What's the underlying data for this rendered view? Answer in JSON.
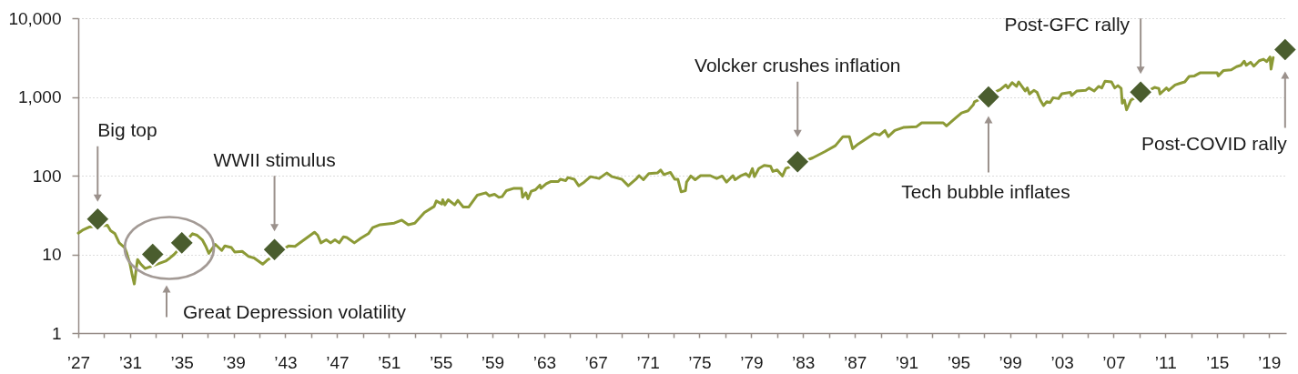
{
  "chart_data": {
    "type": "line",
    "log": true,
    "grid": "y",
    "xlim": [
      "1927-01",
      "2020-05"
    ],
    "ylim": [
      1,
      10000
    ],
    "xticks": [
      {
        "value": "1927",
        "label": "’27"
      },
      {
        "value": "1929",
        "label": null
      },
      {
        "value": "1931",
        "label": "’31"
      },
      {
        "value": "1933",
        "label": null
      },
      {
        "value": "1935",
        "label": "’35"
      },
      {
        "value": "1937",
        "label": null
      },
      {
        "value": "1939",
        "label": "’39"
      },
      {
        "value": "1941",
        "label": null
      },
      {
        "value": "1943",
        "label": "’43"
      },
      {
        "value": "1945",
        "label": null
      },
      {
        "value": "1947",
        "label": "’47"
      },
      {
        "value": "1949",
        "label": null
      },
      {
        "value": "1951",
        "label": "’51"
      },
      {
        "value": "1953",
        "label": null
      },
      {
        "value": "1955",
        "label": "’55"
      },
      {
        "value": "1957",
        "label": null
      },
      {
        "value": "1959",
        "label": "’59"
      },
      {
        "value": "1961",
        "label": null
      },
      {
        "value": "1963",
        "label": "’63"
      },
      {
        "value": "1965",
        "label": null
      },
      {
        "value": "1967",
        "label": "’67"
      },
      {
        "value": "1969",
        "label": null
      },
      {
        "value": "1971",
        "label": "’71"
      },
      {
        "value": "1973",
        "label": null
      },
      {
        "value": "1975",
        "label": "’75"
      },
      {
        "value": "1977",
        "label": null
      },
      {
        "value": "1979",
        "label": "’79"
      },
      {
        "value": "1981",
        "label": null
      },
      {
        "value": "1983",
        "label": "’83"
      },
      {
        "value": "1985",
        "label": null
      },
      {
        "value": "1987",
        "label": "’87"
      },
      {
        "value": "1989",
        "label": null
      },
      {
        "value": "1991",
        "label": "’91"
      },
      {
        "value": "1993",
        "label": null
      },
      {
        "value": "1995",
        "label": "’95"
      },
      {
        "value": "1997",
        "label": null
      },
      {
        "value": "1999",
        "label": "’99"
      },
      {
        "value": "2001",
        "label": null
      },
      {
        "value": "2003",
        "label": "’03"
      },
      {
        "value": "2005",
        "label": null
      },
      {
        "value": "2007",
        "label": "’07"
      },
      {
        "value": "2009",
        "label": null
      },
      {
        "value": "2011",
        "label": "’11"
      },
      {
        "value": "2013",
        "label": null
      },
      {
        "value": "2015",
        "label": "’15"
      },
      {
        "value": "2017",
        "label": null
      },
      {
        "value": "2019",
        "label": "’19"
      }
    ],
    "yticks": [
      1,
      10,
      100,
      {
        "value": 1000,
        "label": "1,000"
      },
      {
        "value": 10000,
        "label": "10,000"
      }
    ],
    "series": [
      {
        "color": "#8c9a36",
        "line_style": "solid",
        "x": [
          "1927-01",
          "1927-05",
          "1927-11",
          "1929-04",
          "1929-07",
          "1929-11",
          "1930-03",
          "1930-08",
          "1930-10",
          "1931-01",
          "1931-03",
          "1931-05",
          "1931-07",
          "1931-08",
          "1931-11",
          "1932-03",
          "1933-10",
          "1934-02",
          "1934-06",
          "1935-11",
          "1936-03",
          "1936-08",
          "1936-11",
          "1937-02",
          "1937-08",
          "1938-02",
          "1938-05",
          "1938-11",
          "1939-02",
          "1939-09",
          "1940-03",
          "1940-08",
          "1941-04",
          "1941-08",
          "1943-04",
          "1943-10",
          "1945-04",
          "1945-07",
          "1945-10",
          "1946-03",
          "1946-07",
          "1946-11",
          "1947-03",
          "1947-07",
          "1947-10",
          "1948-05",
          "1948-11",
          "1949-06",
          "1949-10",
          "1950-05",
          "1951-06",
          "1952-01",
          "1952-07",
          "1953-01",
          "1953-10",
          "1954-07",
          "1954-09",
          "1955-02",
          "1955-03",
          "1955-05",
          "1955-08",
          "1956-02",
          "1956-05",
          "1956-10",
          "1957-03",
          "1957-11",
          "1958-07",
          "1958-10",
          "1959-03",
          "1959-07",
          "1959-10",
          "1960-02",
          "1960-09",
          "1961-04",
          "1961-05",
          "1961-08",
          "1961-10",
          "1962-01",
          "1962-05",
          "1962-09",
          "1962-10",
          "1963-03",
          "1963-07",
          "1964-02",
          "1964-04",
          "1964-09",
          "1964-11",
          "1965-05",
          "1965-09",
          "1966-02",
          "1966-08",
          "1967-04",
          "1967-11",
          "1968-04",
          "1969-01",
          "1969-07",
          "1970-02",
          "1970-05",
          "1970-09",
          "1971-02",
          "1971-10",
          "1972-01",
          "1972-04",
          "1972-10",
          "1973-02",
          "1973-05",
          "1973-08",
          "1973-12",
          "1974-01",
          "1974-05",
          "1974-09",
          "1975-02",
          "1975-11",
          "1976-05",
          "1976-10",
          "1977-02",
          "1977-08",
          "1977-10",
          "1978-03",
          "1978-08",
          "1978-11",
          "1979-02",
          "1979-04",
          "1979-08",
          "1980-01",
          "1980-07",
          "1980-09",
          "1981-01",
          "1981-03",
          "1981-06",
          "1981-09",
          "1983-10",
          "1984-09",
          "1985-07",
          "1986-02",
          "1986-08",
          "1986-11",
          "1987-04",
          "1988-07",
          "1988-12",
          "1989-05",
          "1989-08",
          "1990-02",
          "1990-10",
          "1991-10",
          "1992-03",
          "1993-11",
          "1994-02",
          "1994-10",
          "1995-04",
          "1995-10",
          "1996-03",
          "1996-04",
          "1998-04",
          "1998-09",
          "1998-11",
          "1999-03",
          "1999-07",
          "1999-09",
          "2000-03",
          "2000-05",
          "2000-07",
          "2000-11",
          "2001-02",
          "2001-05",
          "2001-08",
          "2001-11",
          "2002-02",
          "2002-05",
          "2002-10",
          "2003-01",
          "2003-09",
          "2003-10",
          "2004-03",
          "2004-11",
          "2005-02",
          "2005-07",
          "2005-11",
          "2006-02",
          "2006-05",
          "2006-11",
          "2007-02",
          "2007-05",
          "2007-08",
          "2007-09",
          "2007-11",
          "2008-01",
          "2008-05",
          "2010-03",
          "2010-07",
          "2010-08",
          "2011-02",
          "2011-04",
          "2011-10",
          "2012-02",
          "2012-07",
          "2012-11",
          "2013-04",
          "2013-09",
          "2015-01",
          "2015-02",
          "2015-07",
          "2016-02",
          "2016-07",
          "2016-11",
          "2017-02",
          "2017-04",
          "2017-08",
          "2017-11",
          "2018-04",
          "2018-08",
          "2018-11",
          "2019-02",
          "2019-03",
          "2019-05"
        ],
        "values": [
          18.6,
          20.3,
          22.2,
          23.4,
          20,
          18.3,
          14,
          12.2,
          10.3,
          7.5,
          5.5,
          4.2,
          6.9,
          8.6,
          7.5,
          6.6,
          8.2,
          9,
          10,
          18.3,
          17.5,
          15.3,
          12.8,
          10.3,
          13.4,
          11.2,
          12.8,
          12.2,
          10.7,
          10.9,
          9.4,
          9,
          7.5,
          8.4,
          12.8,
          12.6,
          19.1,
          17.5,
          14,
          15.3,
          14,
          15.3,
          14,
          16.7,
          16.4,
          14,
          16,
          18.3,
          21.8,
          23.8,
          24.9,
          27.2,
          23.8,
          24.9,
          34,
          40.6,
          47.6,
          43.6,
          49.4,
          42.5,
          49.4,
          42.5,
          48.5,
          39.9,
          39.9,
          56.5,
          60.5,
          55.4,
          58,
          53,
          54,
          64.5,
          69,
          69,
          53,
          60.5,
          50.8,
          63.3,
          66.2,
          75.7,
          69,
          79,
          84,
          84,
          90,
          86.5,
          94.4,
          90,
          74.3,
          82.7,
          97,
          92,
          108,
          97,
          90,
          74.3,
          90,
          100,
          88.7,
          106,
          108,
          118,
          103,
          110,
          90,
          90,
          62.2,
          64.5,
          82.7,
          98.8,
          88.7,
          100,
          100,
          92,
          98.8,
          82.7,
          100,
          88.7,
          98.8,
          106,
          97,
          123,
          97,
          123,
          135,
          131,
          113,
          118,
          110,
          98.8,
          123,
          168,
          201,
          240,
          313,
          313,
          220,
          251,
          342,
          328,
          374,
          313,
          374,
          409,
          417,
          468,
          468,
          428,
          533,
          626,
          666,
          796,
          869,
          1240,
          1420,
          1300,
          1520,
          1360,
          1550,
          1190,
          1300,
          1090,
          1210,
          1140,
          910,
          775,
          869,
          847,
          977,
          951,
          1100,
          1140,
          1040,
          1190,
          1210,
          1300,
          1190,
          1360,
          1300,
          1580,
          1550,
          1300,
          1390,
          1280,
          832,
          910,
          684,
          910,
          1320,
          1280,
          1090,
          1300,
          1210,
          1420,
          1480,
          1550,
          1820,
          1850,
          2020,
          2020,
          1850,
          2170,
          2210,
          2420,
          2520,
          2840,
          2520,
          2760,
          2460,
          2880,
          3010,
          2810,
          3210,
          2250,
          3160
        ]
      },
      {
        "type": "scatter",
        "marker": "diamond",
        "color": "#4a5d2e",
        "x": [
          "1928-07",
          "1932-10",
          "1935-01",
          "1942-03",
          "1982-08",
          "1997-05",
          "2009-02",
          "2020-04"
        ],
        "values": [
          28,
          10,
          14,
          11.5,
          150,
          1000,
          1150,
          4000
        ]
      }
    ],
    "annotations": [
      "Big top",
      "Great Depression volatility",
      "WWII stimulus",
      "Volcker crushes inflation",
      "Tech bubble inflates",
      "Post-GFC rally",
      "Post-COVID rally"
    ]
  }
}
